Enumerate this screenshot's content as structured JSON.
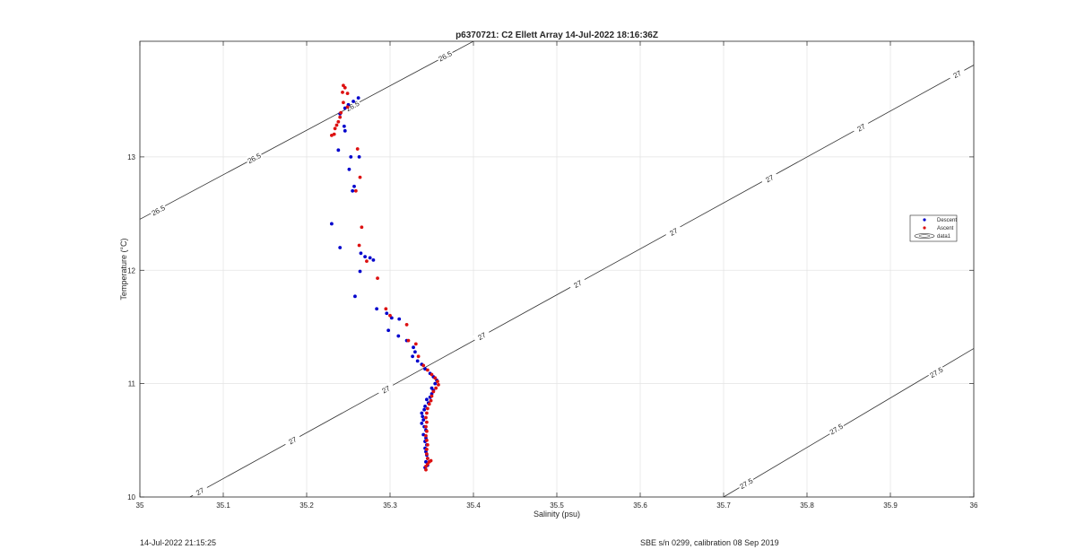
{
  "footer": {
    "timestamp": "14-Jul-2022 21:15:25",
    "calibration": "SBE s/n 0299, calibration 08 Sep 2019"
  },
  "chart_data": {
    "type": "scatter",
    "title": "p6370721: C2 Ellett Array 14-Jul-2022 18:16:36Z",
    "xlabel": "Salinity (psu)",
    "ylabel": "Temperature (°C)",
    "xlim": [
      35,
      36
    ],
    "ylim": [
      10,
      14.02
    ],
    "grid": true,
    "legend_position": "right",
    "x_ticks": [
      "35",
      "35.1",
      "35.2",
      "35.3",
      "35.4",
      "35.5",
      "35.6",
      "35.7",
      "35.8",
      "35.9",
      "36"
    ],
    "y_ticks": [
      "10",
      "11",
      "12",
      "13"
    ],
    "density_contours": [
      {
        "level": 26.5,
        "label": "26.5",
        "points": [
          [
            35.0,
            12.45
          ],
          [
            35.4,
            14.02
          ]
        ],
        "label_at": [
          [
            35.022,
            12.53
          ],
          [
            35.137,
            12.99
          ],
          [
            35.255,
            13.45
          ],
          [
            35.366,
            13.89
          ]
        ]
      },
      {
        "level": 27,
        "label": "27",
        "points": [
          [
            35.06,
            10.0
          ],
          [
            36.0,
            13.81
          ]
        ],
        "label_at": [
          [
            35.072,
            10.05
          ],
          [
            35.183,
            10.5
          ],
          [
            35.295,
            10.95
          ],
          [
            35.41,
            11.42
          ],
          [
            35.525,
            11.88
          ],
          [
            35.64,
            12.34
          ],
          [
            35.755,
            12.81
          ],
          [
            35.865,
            13.26
          ],
          [
            35.98,
            13.73
          ]
        ]
      },
      {
        "level": 27.5,
        "label": "27.5",
        "points": [
          [
            35.7,
            10.0
          ],
          [
            36.0,
            11.31
          ]
        ],
        "label_at": [
          [
            35.727,
            10.12
          ],
          [
            35.835,
            10.6
          ],
          [
            35.955,
            11.1
          ]
        ]
      }
    ],
    "series": [
      {
        "name": "Descent",
        "color": "#0000cc",
        "points": [
          [
            35.262,
            13.52
          ],
          [
            35.256,
            13.49
          ],
          [
            35.25,
            13.46
          ],
          [
            35.246,
            13.43
          ],
          [
            35.24,
            13.38
          ],
          [
            35.245,
            13.27
          ],
          [
            35.246,
            13.23
          ],
          [
            35.238,
            13.06
          ],
          [
            35.253,
            13.0
          ],
          [
            35.263,
            13.0
          ],
          [
            35.251,
            12.89
          ],
          [
            35.257,
            12.74
          ],
          [
            35.255,
            12.7
          ],
          [
            35.23,
            12.41
          ],
          [
            35.24,
            12.2
          ],
          [
            35.265,
            12.15
          ],
          [
            35.27,
            12.12
          ],
          [
            35.276,
            12.11
          ],
          [
            35.28,
            12.09
          ],
          [
            35.264,
            11.99
          ],
          [
            35.258,
            11.77
          ],
          [
            35.284,
            11.66
          ],
          [
            35.296,
            11.62
          ],
          [
            35.302,
            11.58
          ],
          [
            35.311,
            11.57
          ],
          [
            35.298,
            11.47
          ],
          [
            35.31,
            11.42
          ],
          [
            35.32,
            11.38
          ],
          [
            35.328,
            11.32
          ],
          [
            35.33,
            11.28
          ],
          [
            35.327,
            11.24
          ],
          [
            35.333,
            11.2
          ],
          [
            35.338,
            11.17
          ],
          [
            35.342,
            11.13
          ],
          [
            35.348,
            11.09
          ],
          [
            35.352,
            11.06
          ],
          [
            35.356,
            11.03
          ],
          [
            35.354,
            11.0
          ],
          [
            35.35,
            10.96
          ],
          [
            35.352,
            10.94
          ],
          [
            35.35,
            10.91
          ],
          [
            35.348,
            10.88
          ],
          [
            35.344,
            10.86
          ],
          [
            35.346,
            10.83
          ],
          [
            35.342,
            10.8
          ],
          [
            35.341,
            10.77
          ],
          [
            35.338,
            10.74
          ],
          [
            35.339,
            10.71
          ],
          [
            35.34,
            10.68
          ],
          [
            35.338,
            10.65
          ],
          [
            35.341,
            10.62
          ],
          [
            35.343,
            10.59
          ],
          [
            35.34,
            10.55
          ],
          [
            35.343,
            10.52
          ],
          [
            35.342,
            10.49
          ],
          [
            35.344,
            10.46
          ],
          [
            35.342,
            10.43
          ],
          [
            35.343,
            10.4
          ],
          [
            35.344,
            10.37
          ],
          [
            35.345,
            10.34
          ],
          [
            35.343,
            10.31
          ],
          [
            35.345,
            10.28
          ],
          [
            35.342,
            10.26
          ]
        ]
      },
      {
        "name": "Ascent",
        "color": "#dd1111",
        "points": [
          [
            35.244,
            13.63
          ],
          [
            35.246,
            13.61
          ],
          [
            35.243,
            13.57
          ],
          [
            35.249,
            13.56
          ],
          [
            35.244,
            13.48
          ],
          [
            35.249,
            13.44
          ],
          [
            35.241,
            13.39
          ],
          [
            35.24,
            13.35
          ],
          [
            35.238,
            13.31
          ],
          [
            35.236,
            13.28
          ],
          [
            35.234,
            13.25
          ],
          [
            35.233,
            13.2
          ],
          [
            35.23,
            13.19
          ],
          [
            35.261,
            13.07
          ],
          [
            35.264,
            12.82
          ],
          [
            35.259,
            12.7
          ],
          [
            35.266,
            12.38
          ],
          [
            35.263,
            12.22
          ],
          [
            35.272,
            12.08
          ],
          [
            35.285,
            11.93
          ],
          [
            35.295,
            11.66
          ],
          [
            35.3,
            11.6
          ],
          [
            35.32,
            11.52
          ],
          [
            35.322,
            11.38
          ],
          [
            35.331,
            11.35
          ],
          [
            35.334,
            11.24
          ],
          [
            35.34,
            11.16
          ],
          [
            35.345,
            11.12
          ],
          [
            35.35,
            11.08
          ],
          [
            35.354,
            11.05
          ],
          [
            35.357,
            11.02
          ],
          [
            35.358,
            10.99
          ],
          [
            35.355,
            10.96
          ],
          [
            35.352,
            10.93
          ],
          [
            35.35,
            10.89
          ],
          [
            35.349,
            10.85
          ],
          [
            35.347,
            10.82
          ],
          [
            35.345,
            10.78
          ],
          [
            35.344,
            10.74
          ],
          [
            35.343,
            10.7
          ],
          [
            35.344,
            10.66
          ],
          [
            35.343,
            10.62
          ],
          [
            35.344,
            10.58
          ],
          [
            35.343,
            10.54
          ],
          [
            35.344,
            10.5
          ],
          [
            35.345,
            10.46
          ],
          [
            35.344,
            10.42
          ],
          [
            35.344,
            10.38
          ],
          [
            35.345,
            10.34
          ],
          [
            35.347,
            10.31
          ],
          [
            35.349,
            10.32
          ],
          [
            35.345,
            10.29
          ],
          [
            35.343,
            10.27
          ],
          [
            35.343,
            10.24
          ]
        ]
      }
    ],
    "legend": [
      {
        "name": "Descent",
        "marker": "dot",
        "color": "#0000cc"
      },
      {
        "name": "Ascent",
        "marker": "dot",
        "color": "#dd1111"
      },
      {
        "name": "data1",
        "marker": "contour",
        "color": "#333333"
      }
    ]
  }
}
